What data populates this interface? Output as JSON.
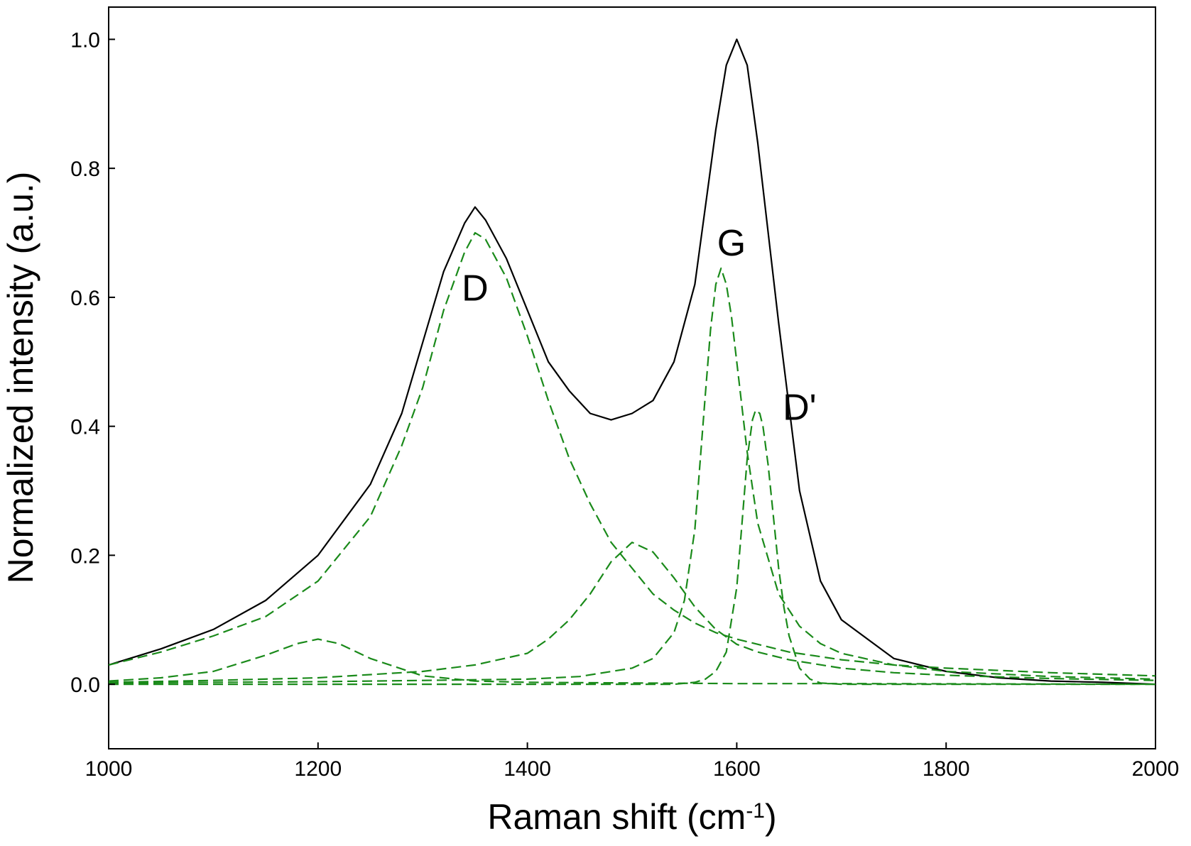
{
  "chart_data": {
    "type": "line",
    "xlabel": "Raman shift (cm",
    "xlabel_sup": "-1",
    "xlabel_end": ")",
    "ylabel": "Normalized intensity (a.u.)",
    "xlim": [
      1000,
      2000
    ],
    "ylim": [
      -0.1,
      1.05
    ],
    "xticks": [
      1000,
      1200,
      1400,
      1600,
      1800,
      2000
    ],
    "xtick_labels": [
      "1000",
      "1200",
      "1400",
      "1600",
      "1800",
      "2000"
    ],
    "yticks": [
      0.0,
      0.2,
      0.4,
      0.6,
      0.8,
      1.0
    ],
    "ytick_labels": [
      "0.0",
      "0.2",
      "0.4",
      "0.6",
      "0.8",
      "1.0"
    ],
    "grid": false,
    "legend": "none",
    "colors": {
      "measured": "#000000",
      "fit": "#1a8a1a"
    },
    "series": [
      {
        "style": "solid",
        "x": [
          1000,
          1050,
          1100,
          1150,
          1200,
          1250,
          1280,
          1300,
          1320,
          1340,
          1350,
          1360,
          1380,
          1400,
          1420,
          1440,
          1460,
          1480,
          1500,
          1520,
          1540,
          1560,
          1580,
          1590,
          1600,
          1610,
          1620,
          1640,
          1660,
          1680,
          1700,
          1750,
          1800,
          1850,
          1900,
          1950,
          2000
        ],
        "y": [
          0.03,
          0.055,
          0.085,
          0.13,
          0.2,
          0.31,
          0.42,
          0.53,
          0.64,
          0.715,
          0.74,
          0.72,
          0.66,
          0.58,
          0.5,
          0.455,
          0.42,
          0.41,
          0.42,
          0.44,
          0.5,
          0.62,
          0.86,
          0.96,
          1.0,
          0.96,
          0.84,
          0.56,
          0.3,
          0.16,
          0.1,
          0.04,
          0.02,
          0.01,
          0.005,
          0.003,
          0.0
        ]
      },
      {
        "style": "dashed",
        "x": [
          1000,
          1050,
          1100,
          1150,
          1200,
          1250,
          1280,
          1300,
          1320,
          1340,
          1350,
          1360,
          1380,
          1400,
          1420,
          1440,
          1460,
          1480,
          1500,
          1520,
          1540,
          1560,
          1580,
          1600,
          1650,
          1700,
          1750,
          1800,
          1900,
          2000
        ],
        "y": [
          0.03,
          0.05,
          0.075,
          0.105,
          0.16,
          0.26,
          0.37,
          0.46,
          0.58,
          0.67,
          0.7,
          0.69,
          0.63,
          0.54,
          0.44,
          0.35,
          0.28,
          0.22,
          0.18,
          0.14,
          0.115,
          0.095,
          0.08,
          0.07,
          0.05,
          0.038,
          0.03,
          0.025,
          0.018,
          0.013
        ]
      },
      {
        "style": "dashed",
        "x": [
          1000,
          1050,
          1100,
          1150,
          1180,
          1200,
          1220,
          1250,
          1300,
          1350,
          1400,
          1500,
          1600,
          1700,
          2000
        ],
        "y": [
          0.005,
          0.01,
          0.02,
          0.045,
          0.063,
          0.07,
          0.063,
          0.04,
          0.013,
          0.005,
          0.003,
          0.002,
          0.001,
          0.001,
          0.0
        ]
      },
      {
        "style": "dashed",
        "x": [
          1000,
          1100,
          1200,
          1300,
          1350,
          1400,
          1420,
          1440,
          1460,
          1480,
          1500,
          1520,
          1540,
          1560,
          1580,
          1600,
          1620,
          1650,
          1700,
          1750,
          1800,
          1900,
          2000
        ],
        "y": [
          0.003,
          0.006,
          0.01,
          0.02,
          0.03,
          0.048,
          0.07,
          0.1,
          0.14,
          0.19,
          0.22,
          0.205,
          0.165,
          0.12,
          0.085,
          0.062,
          0.05,
          0.038,
          0.025,
          0.018,
          0.014,
          0.009,
          0.006
        ]
      },
      {
        "style": "dashed",
        "x": [
          1000,
          1200,
          1400,
          1450,
          1500,
          1520,
          1540,
          1550,
          1560,
          1570,
          1575,
          1580,
          1585,
          1590,
          1595,
          1600,
          1610,
          1620,
          1640,
          1660,
          1680,
          1700,
          1750,
          1800,
          1900,
          2000
        ],
        "y": [
          0.002,
          0.004,
          0.008,
          0.012,
          0.025,
          0.04,
          0.08,
          0.13,
          0.24,
          0.45,
          0.55,
          0.62,
          0.645,
          0.62,
          0.57,
          0.5,
          0.36,
          0.25,
          0.14,
          0.09,
          0.063,
          0.048,
          0.03,
          0.02,
          0.012,
          0.008
        ]
      },
      {
        "style": "dashed",
        "x": [
          1000,
          1400,
          1500,
          1540,
          1560,
          1570,
          1580,
          1590,
          1600,
          1605,
          1610,
          1615,
          1618,
          1622,
          1625,
          1630,
          1635,
          1640,
          1645,
          1650,
          1660,
          1670,
          1680,
          1700,
          2000
        ],
        "y": [
          0.0,
          0.0,
          0.0,
          0.0,
          0.003,
          0.008,
          0.02,
          0.05,
          0.15,
          0.25,
          0.35,
          0.41,
          0.425,
          0.42,
          0.4,
          0.34,
          0.26,
          0.18,
          0.12,
          0.075,
          0.025,
          0.008,
          0.002,
          0.0,
          0.0
        ]
      }
    ],
    "annotations": [
      {
        "text": "D",
        "x": 1350,
        "y": 0.595
      },
      {
        "text": "G",
        "x": 1595,
        "y": 0.665
      },
      {
        "text": "D'",
        "x": 1660,
        "y": 0.41
      }
    ]
  }
}
